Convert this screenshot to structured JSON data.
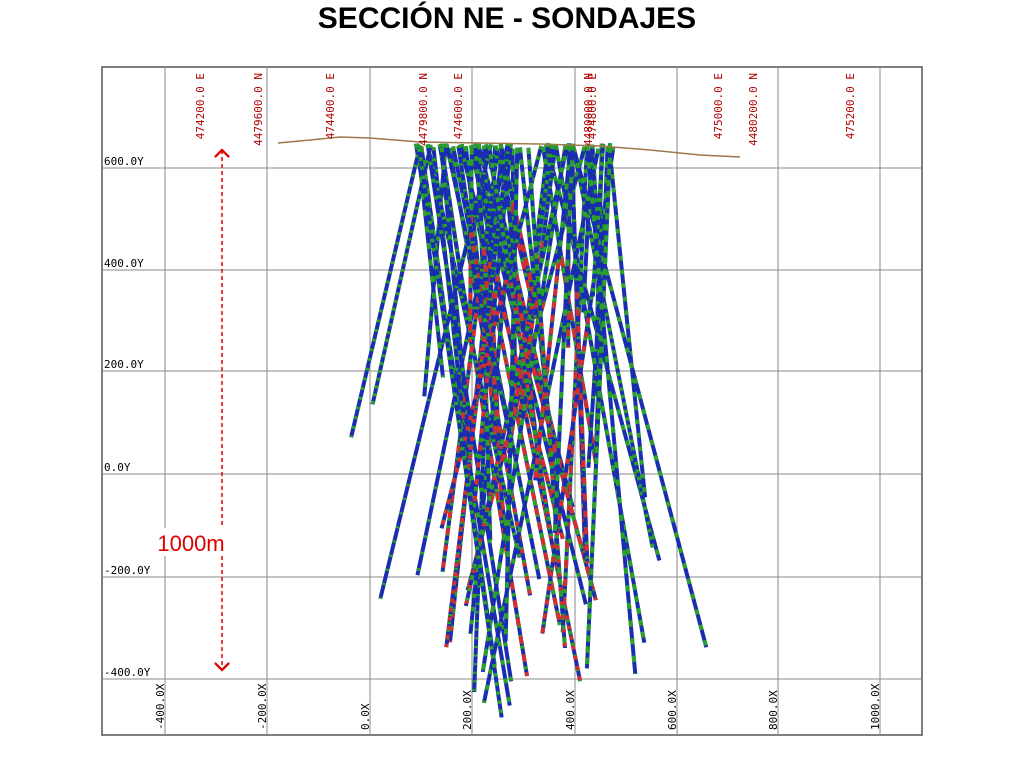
{
  "title": "SECCIÓN NE - SONDAJES",
  "top_labels": [
    "474200.0 E",
    "4479600.0 N",
    "474400.0 E",
    "4479800.0 N",
    "474600.0 E",
    "4480000.0 N",
    "474800.0 E",
    "475000.0 E",
    "4480200.0 N",
    "475200.0 E"
  ],
  "y_labels": [
    "600.0Y",
    "400.0Y",
    "200.0Y",
    "0.0Y",
    "-200.0Y",
    "-400.0Y"
  ],
  "x_labels": [
    "-400.0X",
    "-200.0X",
    "0.0X",
    "200.0X",
    "400.0X",
    "600.0X",
    "800.0X",
    "1000.0X"
  ],
  "annotation": "1000m"
}
